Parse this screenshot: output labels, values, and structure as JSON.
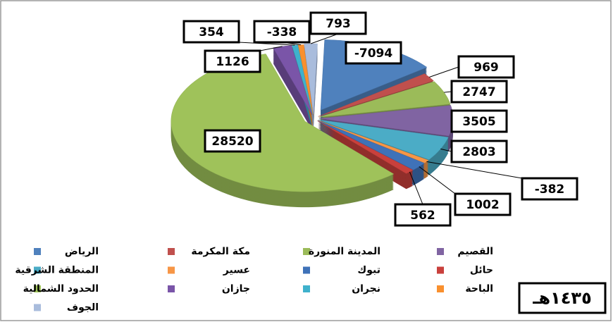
{
  "chart_data": {
    "type": "pie",
    "title": "١٤٣٥هـ",
    "categories": [
      "الرياض",
      "مكة المكرمة",
      "المدينة المنورة",
      "القصيم",
      "المنطقة الشرقية",
      "عسير",
      "تبوك",
      "حائل",
      "الحدود الشمالية",
      "جازان",
      "نجران",
      "الباحة",
      "الجوف"
    ],
    "values": [
      -7094,
      969,
      2747,
      3505,
      2803,
      -382,
      1002,
      562,
      28520,
      1126,
      354,
      -338,
      793
    ],
    "colors": [
      "#4f81bd",
      "#c0504d",
      "#9bbb59",
      "#8064a2",
      "#4bacc6",
      "#f79646",
      "#3f72b8",
      "#c9403c",
      "#9fc25a",
      "#7a55a8",
      "#3fb1cc",
      "#f9902e",
      "#a9bcdc"
    ],
    "legend": "bottom"
  }
}
